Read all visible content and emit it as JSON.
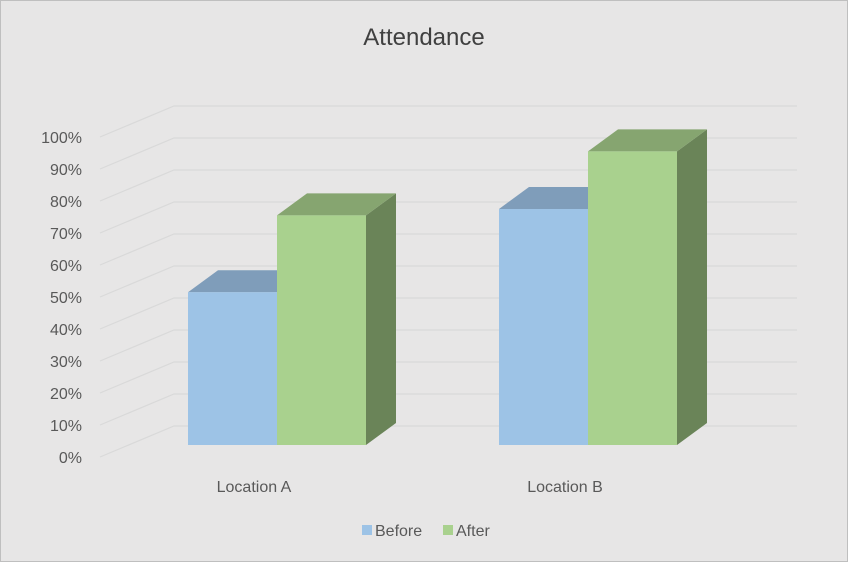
{
  "chart_data": {
    "type": "bar",
    "title": "Attendance",
    "categories": [
      "Location A",
      "Location B"
    ],
    "series": [
      {
        "name": "Before",
        "values": [
          49,
          75
        ],
        "color": "#9DC3E6",
        "top_color": "#7F9DBA"
      },
      {
        "name": "After",
        "values": [
          73,
          93
        ],
        "color": "#A9D18E",
        "top_color": "#86A570",
        "side_color": "#6A8458"
      }
    ],
    "yticks": [
      "0%",
      "10%",
      "20%",
      "30%",
      "40%",
      "50%",
      "60%",
      "70%",
      "80%",
      "90%",
      "100%"
    ],
    "ylim": [
      0,
      100
    ],
    "xlabel": "",
    "ylabel": "",
    "grid": true,
    "legend": "bottom",
    "background": "#E7E6E6",
    "border_color": "#BFBFBF",
    "grid_color": "#D9D9D9"
  }
}
